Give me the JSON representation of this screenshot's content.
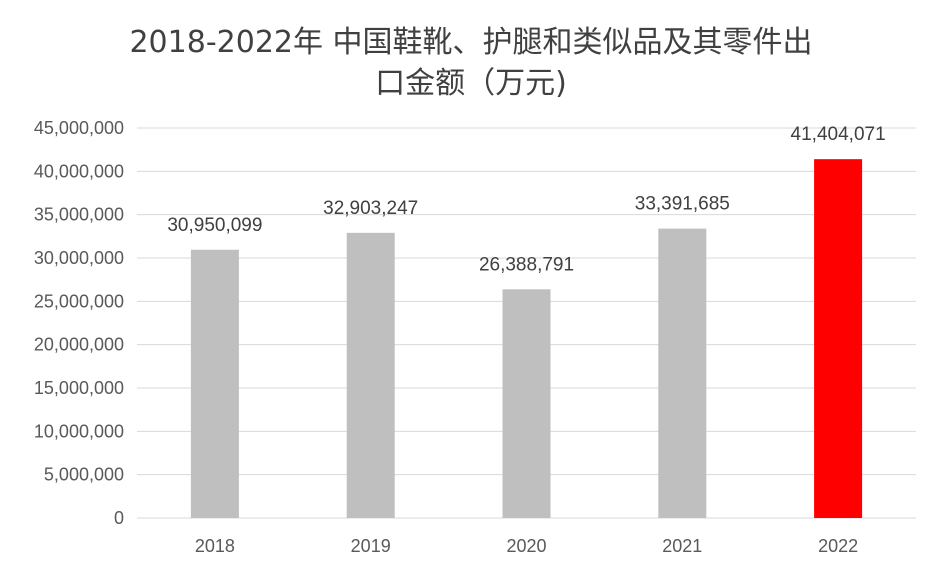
{
  "chart_data": {
    "type": "bar",
    "title_lines": [
      "2018-2022年 中国鞋靴、护腿和类似品及其零件出",
      "口金额（万元)"
    ],
    "categories": [
      "2018",
      "2019",
      "2020",
      "2021",
      "2022"
    ],
    "values": [
      30950099,
      32903247,
      26388791,
      33391685,
      41404071
    ],
    "data_labels": [
      "30,950,099",
      "32,903,247",
      "26,388,791",
      "33,391,685",
      "41,404,071"
    ],
    "y_ticks": [
      "0",
      "5,000,000",
      "10,000,000",
      "15,000,000",
      "20,000,000",
      "25,000,000",
      "30,000,000",
      "35,000,000",
      "40,000,000",
      "45,000,000"
    ],
    "ylim": [
      0,
      45000000
    ],
    "grid": true,
    "colors": {
      "default_bar": "#bfbfbf",
      "highlight_bar": "#ff0000",
      "grid": "#d9d9d9"
    },
    "highlight_index": 4
  }
}
